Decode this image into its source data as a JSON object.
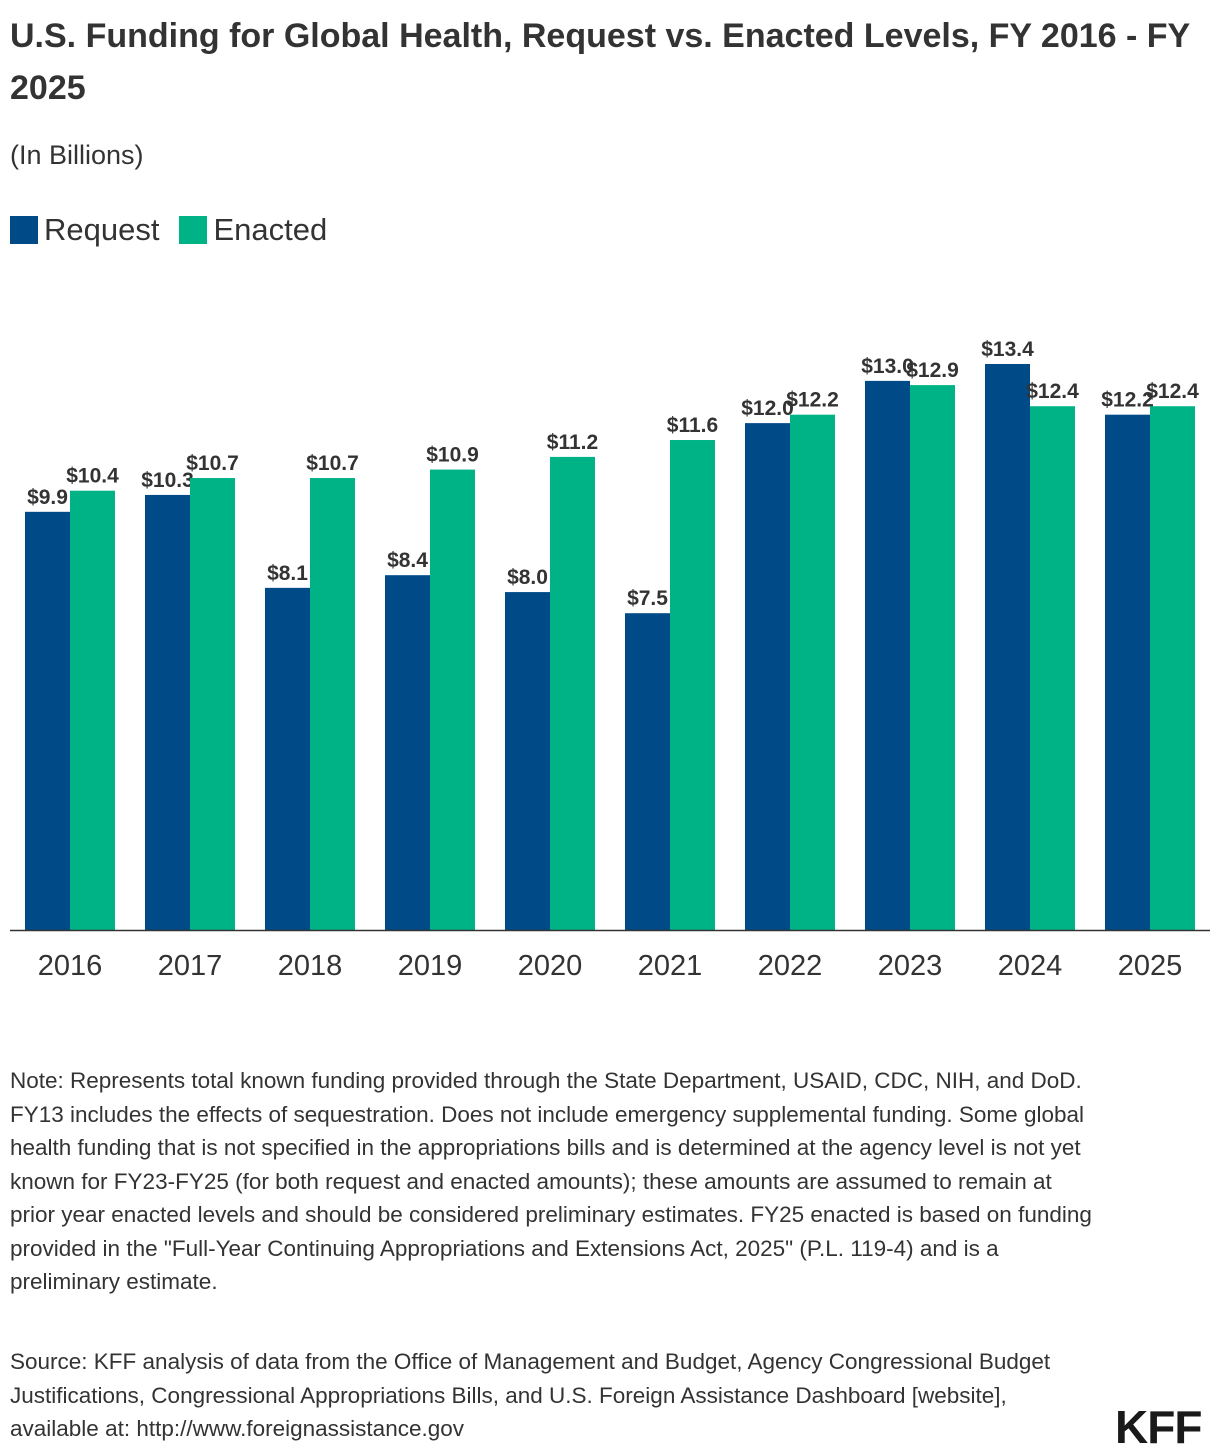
{
  "title": "U.S. Funding for Global Health, Request vs. Enacted Levels, FY 2016 - FY 2025",
  "subtitle": "(In Billions)",
  "legend": [
    {
      "label": "Request",
      "color": "#004b87"
    },
    {
      "label": "Enacted",
      "color": "#00b386"
    }
  ],
  "chart_data": {
    "type": "bar",
    "categories": [
      "2016",
      "2017",
      "2018",
      "2019",
      "2020",
      "2021",
      "2022",
      "2023",
      "2024",
      "2025"
    ],
    "series": [
      {
        "name": "Request",
        "color": "#004b87",
        "values": [
          9.9,
          10.3,
          8.1,
          8.4,
          8.0,
          7.5,
          12.0,
          13.0,
          13.4,
          12.2
        ]
      },
      {
        "name": "Enacted",
        "color": "#00b386",
        "values": [
          10.4,
          10.7,
          10.7,
          10.9,
          11.2,
          11.6,
          12.2,
          12.9,
          12.4,
          12.4
        ]
      }
    ],
    "label_prefix": "$",
    "legend_position": "top-left",
    "grid": false
  },
  "note": "Note: Represents total known funding provided through the State Department, USAID, CDC, NIH, and DoD. FY13 includes the effects of sequestration. Does not include emergency supplemental funding. Some global health funding that is not specified in the appropriations bills and is determined at the agency level is not yet known for FY23-FY25 (for both request and enacted amounts); these amounts are assumed to remain at prior year enacted levels and should be considered preliminary estimates. FY25 enacted is based on funding provided in the \"Full-Year Continuing Appropriations and Extensions Act, 2025\" (P.L. 119-4) and is a preliminary estimate.",
  "source": "Source: KFF analysis of data from the Office of Management and Budget, Agency Congressional Budget Justifications, Congressional Appropriations Bills, and U.S. Foreign Assistance Dashboard [website], available at: http://www.foreignassistance.gov",
  "logo": "KFF"
}
